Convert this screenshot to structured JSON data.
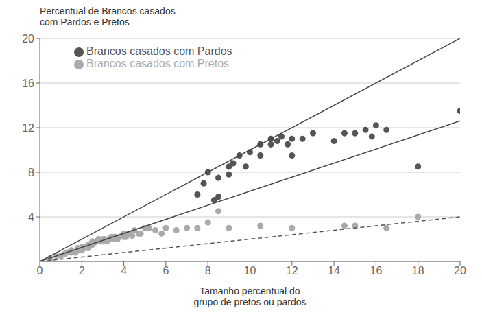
{
  "chart_data": {
    "type": "scatter",
    "title": "Percentual de Brancos casados\ncom Pardos e Pretos",
    "x_label": "Tamanho percentual do\ngrupo de pretos ou pardos",
    "xlim": [
      0,
      20
    ],
    "ylim": [
      0,
      20
    ],
    "xticks": [
      0,
      2,
      4,
      6,
      8,
      10,
      12,
      14,
      16,
      18,
      20
    ],
    "yticks": [
      4,
      8,
      12,
      16,
      20
    ],
    "grid": "y",
    "legend": "upper left",
    "series": [
      {
        "name": "Brancos casados com Pardos",
        "type": "scatter",
        "marker": "circle",
        "color": "#555555",
        "x": [
          7.5,
          7.8,
          8.0,
          8.3,
          8.5,
          8.5,
          9.0,
          9.0,
          9.2,
          9.5,
          9.8,
          10.0,
          10.5,
          10.5,
          11.0,
          11.0,
          11.3,
          11.5,
          11.8,
          12.0,
          12.0,
          12.5,
          13.0,
          14.0,
          14.5,
          15.0,
          15.5,
          15.8,
          16.0,
          16.5,
          18.0,
          20.0
        ],
        "values": [
          6.0,
          7.0,
          8.0,
          5.5,
          5.8,
          7.5,
          7.8,
          8.5,
          8.8,
          9.5,
          8.5,
          9.8,
          9.5,
          10.5,
          10.5,
          11.0,
          10.8,
          11.2,
          10.5,
          11.0,
          9.5,
          11.0,
          11.5,
          10.8,
          11.5,
          11.5,
          11.8,
          11.2,
          12.2,
          11.8,
          8.5,
          13.5
        ]
      },
      {
        "name": "Brancos casados com Pretos",
        "type": "scatter",
        "marker": "circle",
        "color": "#aaaaaa",
        "x": [
          0.5,
          0.8,
          1.0,
          1.2,
          1.3,
          1.5,
          1.5,
          1.7,
          1.8,
          1.9,
          2.0,
          2.0,
          2.1,
          2.2,
          2.3,
          2.3,
          2.4,
          2.5,
          2.5,
          2.6,
          2.7,
          2.8,
          2.9,
          3.0,
          3.0,
          3.1,
          3.2,
          3.3,
          3.4,
          3.5,
          3.5,
          3.6,
          3.7,
          3.8,
          3.9,
          4.0,
          4.0,
          4.1,
          4.2,
          4.3,
          4.4,
          4.5,
          4.7,
          4.8,
          5.0,
          5.2,
          5.5,
          5.8,
          6.0,
          6.5,
          7.0,
          7.5,
          8.0,
          8.5,
          9.0,
          10.5,
          12.0,
          14.5,
          15.0,
          16.5,
          18.0
        ],
        "values": [
          0.3,
          0.5,
          0.5,
          0.7,
          0.8,
          0.8,
          1.0,
          0.8,
          1.2,
          1.0,
          1.0,
          1.3,
          1.2,
          1.3,
          1.2,
          1.5,
          1.5,
          1.5,
          1.8,
          1.7,
          1.8,
          2.0,
          1.8,
          1.8,
          2.0,
          2.0,
          1.8,
          2.0,
          2.2,
          2.0,
          2.2,
          2.2,
          2.0,
          2.2,
          2.3,
          2.2,
          2.5,
          2.2,
          2.5,
          2.5,
          2.3,
          2.8,
          2.5,
          2.5,
          3.0,
          3.0,
          2.8,
          2.5,
          3.0,
          2.8,
          3.0,
          3.0,
          3.5,
          4.5,
          3.0,
          3.2,
          3.0,
          3.2,
          3.2,
          3.0,
          4.0
        ]
      },
      {
        "type": "line",
        "line_style": "solid",
        "color": "#444444",
        "x": [
          0,
          20
        ],
        "values": [
          0,
          20
        ]
      },
      {
        "type": "line",
        "line_style": "solid",
        "color": "#444444",
        "x": [
          0,
          20
        ],
        "values": [
          0,
          12.6
        ]
      },
      {
        "type": "line",
        "line_style": "dashed",
        "color": "#555555",
        "x": [
          0,
          20
        ],
        "values": [
          0,
          4.0
        ]
      }
    ]
  }
}
